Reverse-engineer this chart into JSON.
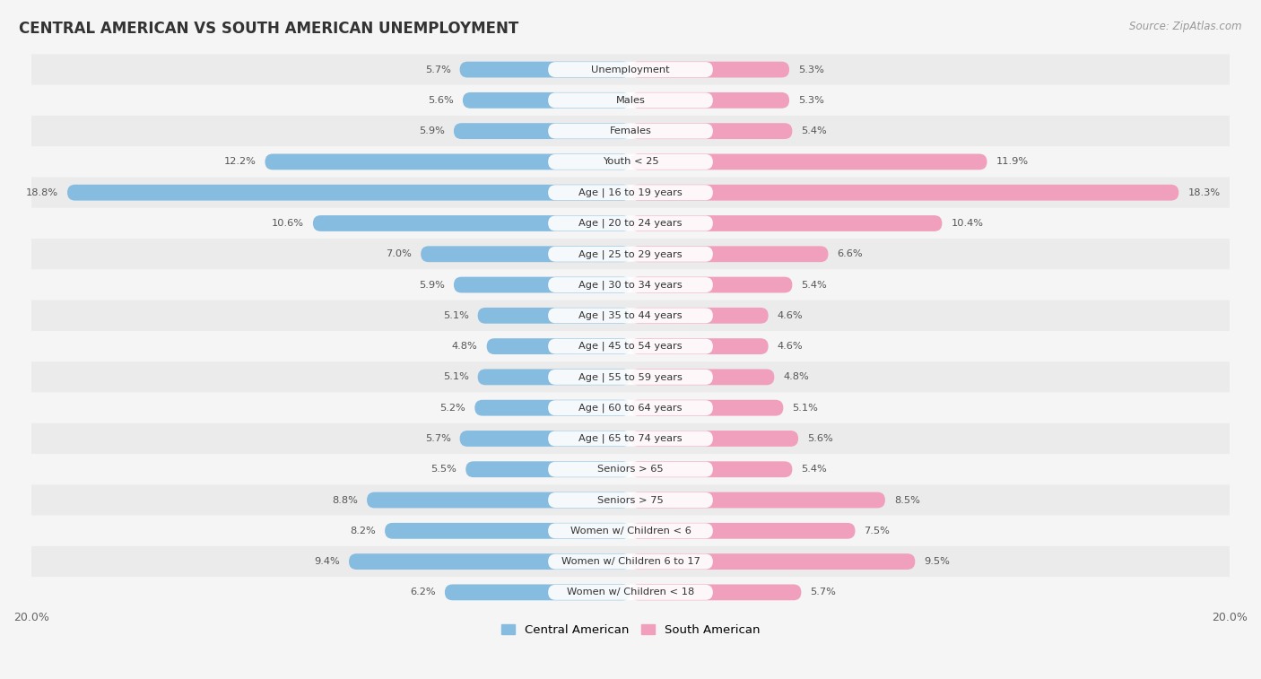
{
  "title": "CENTRAL AMERICAN VS SOUTH AMERICAN UNEMPLOYMENT",
  "source": "Source: ZipAtlas.com",
  "categories": [
    "Unemployment",
    "Males",
    "Females",
    "Youth < 25",
    "Age | 16 to 19 years",
    "Age | 20 to 24 years",
    "Age | 25 to 29 years",
    "Age | 30 to 34 years",
    "Age | 35 to 44 years",
    "Age | 45 to 54 years",
    "Age | 55 to 59 years",
    "Age | 60 to 64 years",
    "Age | 65 to 74 years",
    "Seniors > 65",
    "Seniors > 75",
    "Women w/ Children < 6",
    "Women w/ Children 6 to 17",
    "Women w/ Children < 18"
  ],
  "central_american": [
    5.7,
    5.6,
    5.9,
    12.2,
    18.8,
    10.6,
    7.0,
    5.9,
    5.1,
    4.8,
    5.1,
    5.2,
    5.7,
    5.5,
    8.8,
    8.2,
    9.4,
    6.2
  ],
  "south_american": [
    5.3,
    5.3,
    5.4,
    11.9,
    18.3,
    10.4,
    6.6,
    5.4,
    4.6,
    4.6,
    4.8,
    5.1,
    5.6,
    5.4,
    8.5,
    7.5,
    9.5,
    5.7
  ],
  "central_color": "#85BCe0",
  "south_color": "#F0A0BC",
  "row_color_odd": "#EFEFEF",
  "row_color_even": "#FAFAFA",
  "bg_color": "#F5F5F5",
  "x_max": 20.0,
  "legend_central": "Central American",
  "legend_south": "South American"
}
